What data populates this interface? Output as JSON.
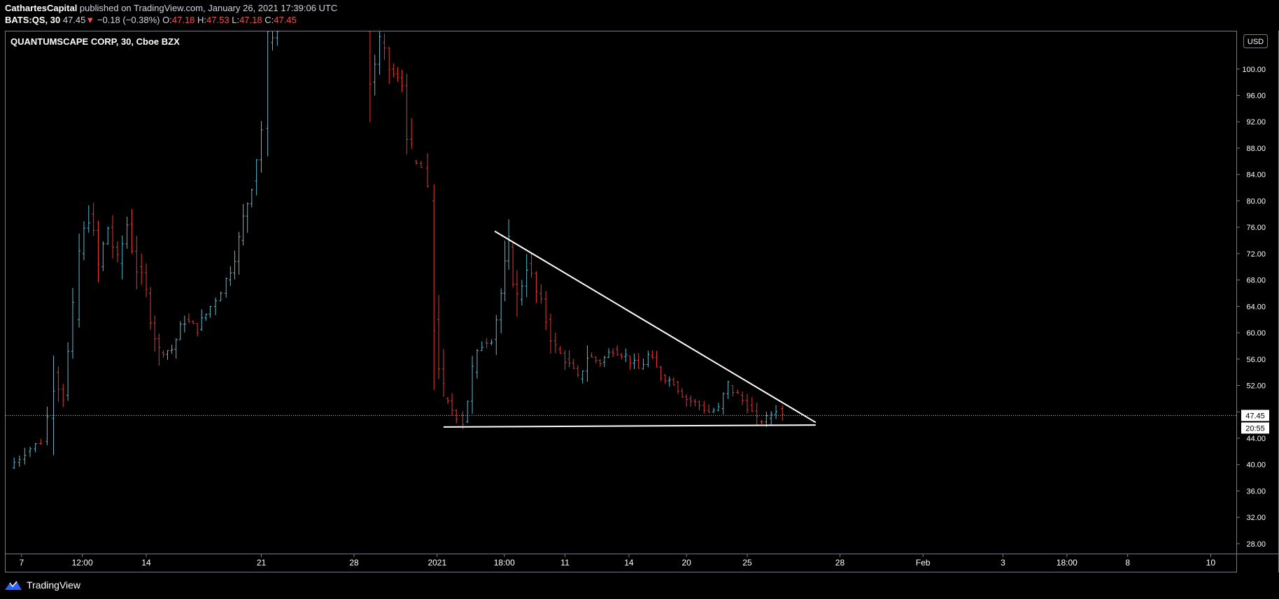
{
  "header": {
    "author": "CathartesCapital",
    "published": " published on TradingView.com, January 26, 2021 17:39:06 UTC",
    "symbol": "BATS:QS, 30",
    "last": "47.45",
    "change_arrow": "▼",
    "change": "−0.18 (−0.38%)",
    "o_label": "O:",
    "o_val": "47.18",
    "h_label": "H:",
    "h_val": "47.53",
    "l_label": "L:",
    "l_val": "47.18",
    "c_label": "C:",
    "c_val": "47.45"
  },
  "chart_title": "QUANTUMSCAPE CORP, 30, Cboe BZX",
  "currency_button": "USD",
  "price_label": "47.45",
  "countdown_label": "20:55",
  "footer": {
    "brand": "TradingView"
  },
  "colors": {
    "up": "#5dbcd2",
    "down": "#e53935",
    "drawing": "#ffffff",
    "bg": "#000000"
  },
  "chart_data": {
    "type": "candlestick",
    "title": "QUANTUMSCAPE CORP, 30, Cboe BZX",
    "y_ticks": [
      100,
      96,
      92,
      88,
      84,
      80,
      76,
      72,
      68,
      64,
      60,
      56,
      52,
      48,
      44,
      40,
      36,
      32,
      28
    ],
    "y_tick_labels": [
      "100.00",
      "96.00",
      "92.00",
      "88.00",
      "84.00",
      "80.00",
      "76.00",
      "72.00",
      "68.00",
      "64.00",
      "60.00",
      "56.00",
      "52.00",
      "",
      "44.00",
      "40.00",
      "36.00",
      "32.00",
      "28.00"
    ],
    "ylim": [
      26.5,
      105.7
    ],
    "x_ticks": [
      {
        "label": "7",
        "t": 0.2
      },
      {
        "label": "12:00",
        "t": 1.15
      },
      {
        "label": "14",
        "t": 2.15
      },
      {
        "label": "21",
        "t": 3.95
      },
      {
        "label": "28",
        "t": 5.4
      },
      {
        "label": "2021",
        "t": 6.7
      },
      {
        "label": "18:00",
        "t": 7.75
      },
      {
        "label": "11",
        "t": 8.7
      },
      {
        "label": "14",
        "t": 9.7
      },
      {
        "label": "20",
        "t": 10.6
      },
      {
        "label": "25",
        "t": 11.55
      },
      {
        "label": "28",
        "t": 13.0
      },
      {
        "label": "Feb",
        "t": 14.3
      },
      {
        "label": "3",
        "t": 15.55
      },
      {
        "label": "18:00",
        "t": 16.55
      },
      {
        "label": "8",
        "t": 17.5
      },
      {
        "label": "10",
        "t": 18.8
      }
    ],
    "xlim": [
      -0.05,
      19.2
    ],
    "series": [
      {
        "t": 0.0,
        "v": 39.5
      },
      {
        "t": 0.25,
        "v": 42.0
      },
      {
        "t": 0.5,
        "v": 43.5
      },
      {
        "t": 0.6,
        "v": 47.0
      },
      {
        "t": 0.7,
        "v": 54.0
      },
      {
        "t": 0.85,
        "v": 50.5
      },
      {
        "t": 1.0,
        "v": 62.0
      },
      {
        "t": 1.1,
        "v": 72.0
      },
      {
        "t": 1.25,
        "v": 78.0
      },
      {
        "t": 1.4,
        "v": 70.0
      },
      {
        "t": 1.55,
        "v": 76.0
      },
      {
        "t": 1.7,
        "v": 70.5
      },
      {
        "t": 1.85,
        "v": 76.5
      },
      {
        "t": 2.0,
        "v": 70.0
      },
      {
        "t": 2.15,
        "v": 66.0
      },
      {
        "t": 2.35,
        "v": 57.0
      },
      {
        "t": 2.55,
        "v": 57.5
      },
      {
        "t": 2.75,
        "v": 62.0
      },
      {
        "t": 2.95,
        "v": 60.5
      },
      {
        "t": 3.15,
        "v": 64.0
      },
      {
        "t": 3.4,
        "v": 68.0
      },
      {
        "t": 3.6,
        "v": 74.0
      },
      {
        "t": 3.8,
        "v": 83.0
      },
      {
        "t": 3.95,
        "v": 91.0
      },
      {
        "t": 4.05,
        "v": 104.0
      },
      {
        "t": 4.2,
        "v": 107.0
      },
      {
        "t": 5.55,
        "v": 106.0
      },
      {
        "t": 5.65,
        "v": 98.0
      },
      {
        "t": 5.8,
        "v": 104.0
      },
      {
        "t": 5.95,
        "v": 100.0
      },
      {
        "t": 6.15,
        "v": 97.5
      },
      {
        "t": 6.3,
        "v": 86.0
      },
      {
        "t": 6.45,
        "v": 85.0
      },
      {
        "t": 6.55,
        "v": 80.0
      },
      {
        "t": 6.65,
        "v": 62.0
      },
      {
        "t": 6.8,
        "v": 50.0
      },
      {
        "t": 7.0,
        "v": 47.5
      },
      {
        "t": 7.1,
        "v": 46.5
      },
      {
        "t": 7.25,
        "v": 54.0
      },
      {
        "t": 7.4,
        "v": 58.5
      },
      {
        "t": 7.55,
        "v": 59.0
      },
      {
        "t": 7.7,
        "v": 66.0
      },
      {
        "t": 7.82,
        "v": 73.0
      },
      {
        "t": 7.95,
        "v": 65.0
      },
      {
        "t": 8.1,
        "v": 70.5
      },
      {
        "t": 8.25,
        "v": 66.0
      },
      {
        "t": 8.4,
        "v": 62.0
      },
      {
        "t": 8.55,
        "v": 57.5
      },
      {
        "t": 8.7,
        "v": 56.0
      },
      {
        "t": 8.9,
        "v": 53.0
      },
      {
        "t": 9.05,
        "v": 56.5
      },
      {
        "t": 9.25,
        "v": 55.5
      },
      {
        "t": 9.45,
        "v": 57.5
      },
      {
        "t": 9.65,
        "v": 56.5
      },
      {
        "t": 9.85,
        "v": 54.5
      },
      {
        "t": 10.0,
        "v": 56.5
      },
      {
        "t": 10.2,
        "v": 53.5
      },
      {
        "t": 10.4,
        "v": 52.5
      },
      {
        "t": 10.6,
        "v": 50.0
      },
      {
        "t": 10.8,
        "v": 49.0
      },
      {
        "t": 10.95,
        "v": 48.0
      },
      {
        "t": 11.1,
        "v": 48.5
      },
      {
        "t": 11.25,
        "v": 52.0
      },
      {
        "t": 11.4,
        "v": 50.5
      },
      {
        "t": 11.55,
        "v": 49.0
      },
      {
        "t": 11.7,
        "v": 46.5
      },
      {
        "t": 11.85,
        "v": 47.0
      },
      {
        "t": 12.0,
        "v": 48.5
      },
      {
        "t": 12.1,
        "v": 47.45
      }
    ],
    "last_price": 47.45,
    "drawings": {
      "support_line": {
        "t1": 6.8,
        "v1": 45.7,
        "t2": 12.62,
        "v2": 46.0
      },
      "resistance_line": {
        "t1": 7.6,
        "v1": 75.4,
        "t2": 12.62,
        "v2": 46.4
      }
    }
  }
}
